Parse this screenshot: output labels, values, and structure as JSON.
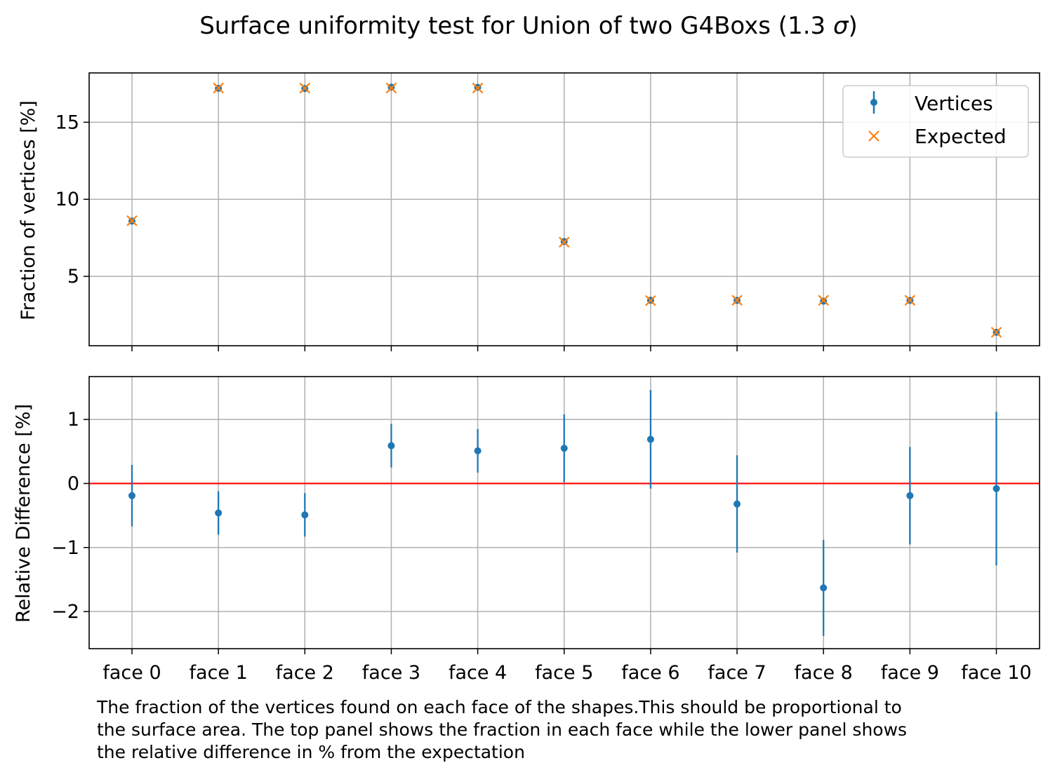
{
  "chart_data": [
    {
      "type": "scatter",
      "title": "Surface uniformity test for Union of two G4Boxs (1.3 σ)",
      "title_main": "Surface uniformity test for Union of two G4Boxs (1.3 ",
      "title_sigma": "σ",
      "title_end": ")",
      "ylabel": "Fraction of vertices [%]",
      "categories": [
        "face 0",
        "face 1",
        "face 2",
        "face 3",
        "face 4",
        "face 5",
        "face 6",
        "face 7",
        "face 8",
        "face 9",
        "face 10"
      ],
      "ylim": [
        0.5,
        18.2
      ],
      "yticks": [
        5,
        10,
        15
      ],
      "grid": true,
      "legend_position": "top-right",
      "series": [
        {
          "name": "Vertices",
          "color": "#1f77b4",
          "marker": "point-errorbar",
          "values": [
            8.59,
            17.2,
            17.19,
            17.28,
            17.27,
            7.26,
            3.45,
            3.44,
            3.39,
            3.44,
            1.37
          ]
        },
        {
          "name": "Expected",
          "color": "#ff7f0e",
          "marker": "x",
          "values": [
            8.61,
            17.22,
            17.22,
            17.22,
            17.22,
            7.22,
            3.43,
            3.45,
            3.45,
            3.45,
            1.37
          ]
        }
      ]
    },
    {
      "type": "scatter",
      "ylabel": "Relative Difference [%]",
      "categories": [
        "face 0",
        "face 1",
        "face 2",
        "face 3",
        "face 4",
        "face 5",
        "face 6",
        "face 7",
        "face 8",
        "face 9",
        "face 10"
      ],
      "ylim": [
        -2.58,
        1.67
      ],
      "yticks": [
        -2,
        -1,
        0,
        1
      ],
      "ytick_labels": [
        "−2",
        "−1",
        "0",
        "1"
      ],
      "grid": true,
      "reference_line": {
        "y": 0,
        "color": "#ff0000"
      },
      "series": [
        {
          "color": "#1f77b4",
          "marker": "point-errorbar",
          "values": [
            -0.19,
            -0.46,
            -0.49,
            0.59,
            0.51,
            0.55,
            0.69,
            -0.32,
            -1.63,
            -0.19,
            -0.08
          ],
          "errors": [
            0.48,
            0.34,
            0.34,
            0.34,
            0.34,
            0.53,
            0.77,
            0.76,
            0.75,
            0.76,
            1.2
          ]
        }
      ]
    }
  ],
  "caption": "The fraction of the vertices found on each face of the shapes.This should be proportional to the surface area. The top panel shows the fraction in each face while the lower panel shows the relative difference in % from the expectation",
  "caption_lines": [
    "The fraction of the vertices found on each face of the shapes.This should be proportional to",
    "the surface area. The top panel shows the fraction in each face while the lower panel shows",
    "the relative difference in % from the expectation"
  ]
}
